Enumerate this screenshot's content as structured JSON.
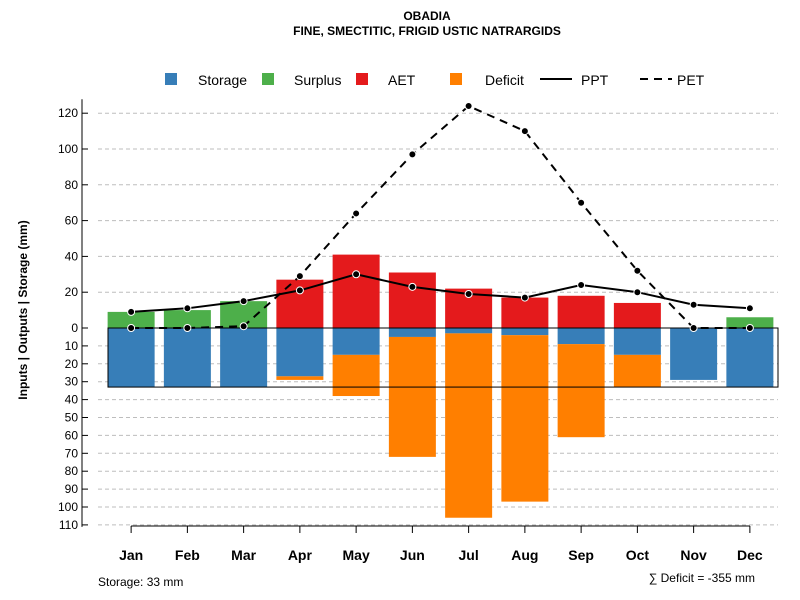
{
  "chart_data": {
    "type": "bar",
    "title": "OBADIA",
    "subtitle": "FINE, SMECTITIC, FRIGID USTIC NATRARGIDS",
    "ylabel": "Inputs | Outputs | Storage    (mm)",
    "categories": [
      "Jan",
      "Feb",
      "Mar",
      "Apr",
      "May",
      "Jun",
      "Jul",
      "Aug",
      "Sep",
      "Oct",
      "Nov",
      "Dec"
    ],
    "y_up_ticks": [
      "0",
      "20",
      "40",
      "60",
      "80",
      "100",
      "120"
    ],
    "y_down_ticks": [
      "10",
      "20",
      "30",
      "40",
      "50",
      "60",
      "70",
      "80",
      "90",
      "100",
      "110"
    ],
    "ylim_up": [
      0,
      125
    ],
    "ylim_down": [
      0,
      110
    ],
    "storage_capacity": 33,
    "series": [
      {
        "name": "Surplus",
        "color": "#4daf4a",
        "direction": "up",
        "values": [
          9,
          10,
          15,
          0,
          0,
          0,
          0,
          0,
          0,
          0,
          0,
          6
        ]
      },
      {
        "name": "AET",
        "color": "#e41a1c",
        "direction": "up",
        "values": [
          0,
          0,
          0,
          27,
          41,
          31,
          22,
          17,
          18,
          14,
          0,
          0
        ]
      },
      {
        "name": "Storage",
        "color": "#377eb8",
        "direction": "down",
        "values": [
          33,
          33,
          33,
          27,
          15,
          5,
          3,
          4,
          9,
          15,
          29,
          33
        ]
      },
      {
        "name": "Deficit",
        "color": "#ff7f00",
        "direction": "down",
        "values": [
          0,
          0,
          0,
          2,
          23,
          67,
          103,
          93,
          52,
          18,
          0,
          0
        ]
      },
      {
        "name": "PPT",
        "line": "solid",
        "values": [
          9,
          11,
          15,
          21,
          30,
          23,
          19,
          17,
          24,
          20,
          13,
          11
        ]
      },
      {
        "name": "PET",
        "line": "dashed",
        "values": [
          0,
          0,
          1,
          29,
          64,
          97,
          124,
          110,
          70,
          32,
          0,
          0
        ]
      }
    ],
    "legend": [
      {
        "label": "Storage",
        "kind": "box",
        "color": "#377eb8"
      },
      {
        "label": "Surplus",
        "kind": "box",
        "color": "#4daf4a"
      },
      {
        "label": "AET",
        "kind": "box",
        "color": "#e41a1c"
      },
      {
        "label": "Deficit",
        "kind": "box",
        "color": "#ff7f00"
      },
      {
        "label": "PPT",
        "kind": "line",
        "dash": "none"
      },
      {
        "label": "PET",
        "kind": "line",
        "dash": "dashed"
      }
    ],
    "legend_position": "top",
    "grid": true,
    "footer_left": "Storage: 33 mm",
    "footer_right": "∑ Deficit = -355 mm"
  }
}
